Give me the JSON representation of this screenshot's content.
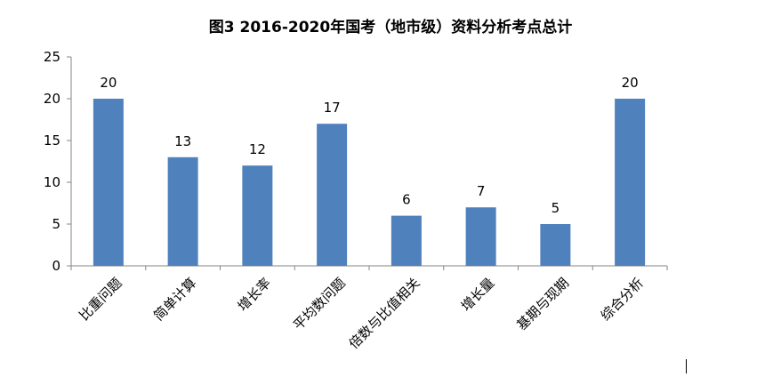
{
  "chart_data": {
    "type": "bar",
    "title": "图3  2016-2020年国考（地市级）资料分析考点总计",
    "xlabel": "",
    "ylabel": "",
    "categories": [
      "比重问题",
      "简单计算",
      "增长率",
      "平均数问题",
      "倍数与比值相关",
      "增长量",
      "基期与现期",
      "综合分析"
    ],
    "values": [
      20,
      13,
      12,
      17,
      6,
      7,
      5,
      20
    ],
    "ylim": [
      0,
      25
    ],
    "yticks": [
      0,
      5,
      10,
      15,
      20,
      25
    ],
    "grid": false,
    "legend": "none",
    "data_labels": true,
    "bar_color": "#4F81BD"
  }
}
